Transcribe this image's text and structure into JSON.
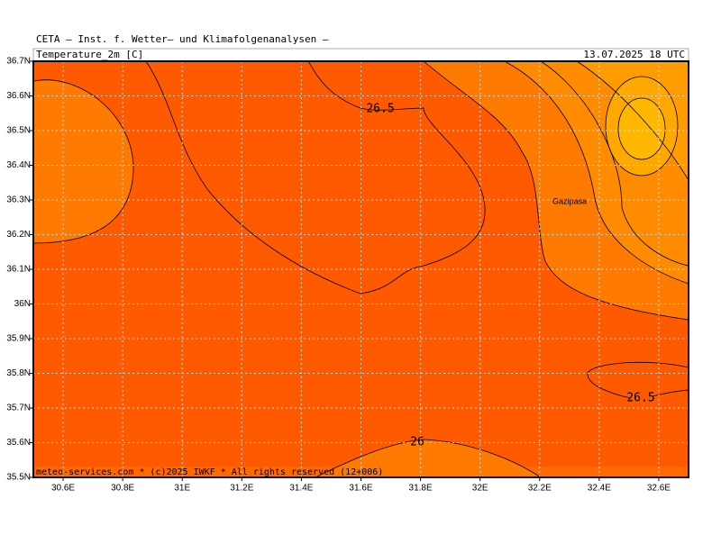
{
  "header": {
    "institute": "CETA — Inst. f. Wetter— und Klimafolgenanalysen —",
    "title": "Temperature_2m [C]",
    "date": "13.07.2025 18 UTC"
  },
  "map": {
    "xlim": [
      30.5,
      32.7
    ],
    "ylim": [
      35.5,
      36.7
    ],
    "lon_ticks": [
      {
        "value": 30.6,
        "label": "30.6E"
      },
      {
        "value": 30.8,
        "label": "30.8E"
      },
      {
        "value": 31,
        "label": "31E"
      },
      {
        "value": 31.2,
        "label": "31.2E"
      },
      {
        "value": 31.4,
        "label": "31.4E"
      },
      {
        "value": 31.6,
        "label": "31.6E"
      },
      {
        "value": 31.8,
        "label": "31.8E"
      },
      {
        "value": 32,
        "label": "32E"
      },
      {
        "value": 32.2,
        "label": "32.2E"
      },
      {
        "value": 32.4,
        "label": "32.4E"
      },
      {
        "value": 32.6,
        "label": "32.6E"
      }
    ],
    "lat_ticks": [
      {
        "value": 36.7,
        "label": "36.7N"
      },
      {
        "value": 36.6,
        "label": "36.6N"
      },
      {
        "value": 36.5,
        "label": "36.5N"
      },
      {
        "value": 36.4,
        "label": "36.4N"
      },
      {
        "value": 36.3,
        "label": "36.3N"
      },
      {
        "value": 36.2,
        "label": "36.2N"
      },
      {
        "value": 36.1,
        "label": "36.1N"
      },
      {
        "value": 36,
        "label": "36N"
      },
      {
        "value": 35.9,
        "label": "35.9N"
      },
      {
        "value": 35.8,
        "label": "35.8N"
      },
      {
        "value": 35.7,
        "label": "35.7N"
      },
      {
        "value": 35.6,
        "label": "35.6N"
      },
      {
        "value": 35.5,
        "label": "35.5N"
      }
    ],
    "contour_labels": [
      "26.5",
      "26.5",
      "26"
    ],
    "place": "Gazipasa",
    "footer": "meteo-services.com * (c)2025 IWKF * All rights reserved (12+006)"
  }
}
